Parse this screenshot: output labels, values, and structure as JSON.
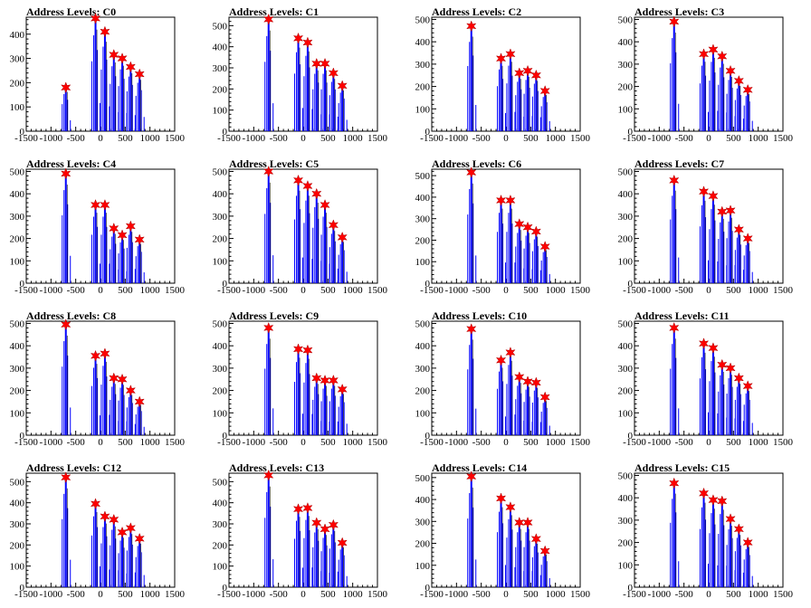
{
  "chart_data": [
    {
      "type": "bar",
      "title": "Address Levels: C0",
      "xlim": [
        -1500,
        1500
      ],
      "ylim": [
        0,
        470
      ],
      "yticks": [
        0,
        100,
        200,
        300,
        400
      ],
      "xticks": [
        -1500,
        -1000,
        -500,
        0,
        500,
        1000,
        1500
      ],
      "peaks": [
        [
          -700,
          180
        ],
        [
          -100,
          465
        ],
        [
          90,
          410
        ],
        [
          270,
          315
        ],
        [
          440,
          300
        ],
        [
          610,
          265
        ],
        [
          790,
          235
        ]
      ],
      "bar_color": "#0000ff",
      "marker_color": "#ff0000"
    },
    {
      "type": "bar",
      "title": "Address Levels: C1",
      "xlim": [
        -1500,
        1500
      ],
      "ylim": [
        0,
        540
      ],
      "yticks": [
        0,
        100,
        200,
        300,
        400,
        500
      ],
      "xticks": [
        -1500,
        -1000,
        -500,
        0,
        500,
        1000,
        1500
      ],
      "peaks": [
        [
          -700,
          530
        ],
        [
          -100,
          440
        ],
        [
          90,
          420
        ],
        [
          270,
          320
        ],
        [
          440,
          320
        ],
        [
          610,
          275
        ],
        [
          790,
          215
        ]
      ],
      "bar_color": "#0000ff",
      "marker_color": "#ff0000"
    },
    {
      "type": "bar",
      "title": "Address Levels: C2",
      "xlim": [
        -1500,
        1500
      ],
      "ylim": [
        0,
        510
      ],
      "yticks": [
        0,
        100,
        200,
        300,
        400,
        500
      ],
      "xticks": [
        -1500,
        -1000,
        -500,
        0,
        500,
        1000,
        1500
      ],
      "peaks": [
        [
          -700,
          470
        ],
        [
          -100,
          325
        ],
        [
          90,
          345
        ],
        [
          270,
          260
        ],
        [
          440,
          270
        ],
        [
          610,
          250
        ],
        [
          790,
          180
        ]
      ],
      "bar_color": "#0000ff",
      "marker_color": "#ff0000"
    },
    {
      "type": "bar",
      "title": "Address Levels: C3",
      "xlim": [
        -1500,
        1500
      ],
      "ylim": [
        0,
        510
      ],
      "yticks": [
        0,
        100,
        200,
        300,
        400,
        500
      ],
      "xticks": [
        -1500,
        -1000,
        -500,
        0,
        500,
        1000,
        1500
      ],
      "peaks": [
        [
          -700,
          490
        ],
        [
          -100,
          345
        ],
        [
          90,
          365
        ],
        [
          270,
          335
        ],
        [
          440,
          270
        ],
        [
          610,
          225
        ],
        [
          790,
          185
        ]
      ],
      "bar_color": "#0000ff",
      "marker_color": "#ff0000"
    },
    {
      "type": "bar",
      "title": "Address Levels: C4",
      "xlim": [
        -1500,
        1500
      ],
      "ylim": [
        0,
        510
      ],
      "yticks": [
        0,
        100,
        200,
        300,
        400,
        500
      ],
      "xticks": [
        -1500,
        -1000,
        -500,
        0,
        500,
        1000,
        1500
      ],
      "peaks": [
        [
          -700,
          490
        ],
        [
          -100,
          350
        ],
        [
          90,
          350
        ],
        [
          270,
          245
        ],
        [
          440,
          215
        ],
        [
          610,
          255
        ],
        [
          790,
          195
        ]
      ],
      "bar_color": "#0000ff",
      "marker_color": "#ff0000"
    },
    {
      "type": "bar",
      "title": "Address Levels: C5",
      "xlim": [
        -1500,
        1500
      ],
      "ylim": [
        0,
        510
      ],
      "yticks": [
        0,
        100,
        200,
        300,
        400,
        500
      ],
      "xticks": [
        -1500,
        -1000,
        -500,
        0,
        500,
        1000,
        1500
      ],
      "peaks": [
        [
          -700,
          500
        ],
        [
          -100,
          460
        ],
        [
          90,
          435
        ],
        [
          270,
          400
        ],
        [
          440,
          350
        ],
        [
          610,
          260
        ],
        [
          790,
          205
        ]
      ],
      "bar_color": "#0000ff",
      "marker_color": "#ff0000"
    },
    {
      "type": "bar",
      "title": "Address Levels: C6",
      "xlim": [
        -1500,
        1500
      ],
      "ylim": [
        0,
        530
      ],
      "yticks": [
        0,
        100,
        200,
        300,
        400,
        500
      ],
      "xticks": [
        -1500,
        -1000,
        -500,
        0,
        500,
        1000,
        1500
      ],
      "peaks": [
        [
          -700,
          515
        ],
        [
          -100,
          385
        ],
        [
          90,
          385
        ],
        [
          270,
          275
        ],
        [
          440,
          260
        ],
        [
          610,
          240
        ],
        [
          790,
          170
        ]
      ],
      "bar_color": "#0000ff",
      "marker_color": "#ff0000"
    },
    {
      "type": "bar",
      "title": "Address Levels: C7",
      "xlim": [
        -1500,
        1500
      ],
      "ylim": [
        0,
        510
      ],
      "yticks": [
        0,
        100,
        200,
        300,
        400,
        500
      ],
      "xticks": [
        -1500,
        -1000,
        -500,
        0,
        500,
        1000,
        1500
      ],
      "peaks": [
        [
          -700,
          460
        ],
        [
          -100,
          410
        ],
        [
          90,
          390
        ],
        [
          270,
          320
        ],
        [
          440,
          325
        ],
        [
          610,
          240
        ],
        [
          790,
          200
        ]
      ],
      "bar_color": "#0000ff",
      "marker_color": "#ff0000"
    },
    {
      "type": "bar",
      "title": "Address Levels: C8",
      "xlim": [
        -1500,
        1500
      ],
      "ylim": [
        0,
        510
      ],
      "yticks": [
        0,
        100,
        200,
        300,
        400,
        500
      ],
      "xticks": [
        -1500,
        -1000,
        -500,
        0,
        500,
        1000,
        1500
      ],
      "peaks": [
        [
          -700,
          495
        ],
        [
          -100,
          355
        ],
        [
          90,
          365
        ],
        [
          270,
          255
        ],
        [
          440,
          250
        ],
        [
          610,
          200
        ],
        [
          790,
          150
        ]
      ],
      "bar_color": "#0000ff",
      "marker_color": "#ff0000"
    },
    {
      "type": "bar",
      "title": "Address Levels: C9",
      "xlim": [
        -1500,
        1500
      ],
      "ylim": [
        0,
        510
      ],
      "yticks": [
        0,
        100,
        200,
        300,
        400,
        500
      ],
      "xticks": [
        -1500,
        -1000,
        -500,
        0,
        500,
        1000,
        1500
      ],
      "peaks": [
        [
          -700,
          480
        ],
        [
          -100,
          385
        ],
        [
          90,
          380
        ],
        [
          270,
          255
        ],
        [
          440,
          245
        ],
        [
          610,
          245
        ],
        [
          790,
          205
        ]
      ],
      "bar_color": "#0000ff",
      "marker_color": "#ff0000"
    },
    {
      "type": "bar",
      "title": "Address Levels: C10",
      "xlim": [
        -1500,
        1500
      ],
      "ylim": [
        0,
        510
      ],
      "yticks": [
        0,
        100,
        200,
        300,
        400,
        500
      ],
      "xticks": [
        -1500,
        -1000,
        -500,
        0,
        500,
        1000,
        1500
      ],
      "peaks": [
        [
          -700,
          475
        ],
        [
          -100,
          335
        ],
        [
          90,
          370
        ],
        [
          270,
          260
        ],
        [
          440,
          240
        ],
        [
          610,
          235
        ],
        [
          790,
          170
        ]
      ],
      "bar_color": "#0000ff",
      "marker_color": "#ff0000"
    },
    {
      "type": "bar",
      "title": "Address Levels: C11",
      "xlim": [
        -1500,
        1500
      ],
      "ylim": [
        0,
        510
      ],
      "yticks": [
        0,
        100,
        200,
        300,
        400,
        500
      ],
      "xticks": [
        -1500,
        -1000,
        -500,
        0,
        500,
        1000,
        1500
      ],
      "peaks": [
        [
          -700,
          480
        ],
        [
          -100,
          410
        ],
        [
          90,
          390
        ],
        [
          270,
          315
        ],
        [
          440,
          300
        ],
        [
          610,
          255
        ],
        [
          790,
          220
        ]
      ],
      "bar_color": "#0000ff",
      "marker_color": "#ff0000"
    },
    {
      "type": "bar",
      "title": "Address Levels: C12",
      "xlim": [
        -1500,
        1500
      ],
      "ylim": [
        0,
        540
      ],
      "yticks": [
        0,
        100,
        200,
        300,
        400,
        500
      ],
      "xticks": [
        -1500,
        -1000,
        -500,
        0,
        500,
        1000,
        1500
      ],
      "peaks": [
        [
          -700,
          520
        ],
        [
          -100,
          395
        ],
        [
          90,
          335
        ],
        [
          270,
          320
        ],
        [
          440,
          260
        ],
        [
          610,
          280
        ],
        [
          790,
          230
        ]
      ],
      "bar_color": "#0000ff",
      "marker_color": "#ff0000"
    },
    {
      "type": "bar",
      "title": "Address Levels: C13",
      "xlim": [
        -1500,
        1500
      ],
      "ylim": [
        0,
        540
      ],
      "yticks": [
        0,
        100,
        200,
        300,
        400,
        500
      ],
      "xticks": [
        -1500,
        -1000,
        -500,
        0,
        500,
        1000,
        1500
      ],
      "peaks": [
        [
          -700,
          530
        ],
        [
          -100,
          370
        ],
        [
          90,
          375
        ],
        [
          270,
          305
        ],
        [
          440,
          275
        ],
        [
          610,
          295
        ],
        [
          790,
          210
        ]
      ],
      "bar_color": "#0000ff",
      "marker_color": "#ff0000"
    },
    {
      "type": "bar",
      "title": "Address Levels: C14",
      "xlim": [
        -1500,
        1500
      ],
      "ylim": [
        0,
        520
      ],
      "yticks": [
        0,
        100,
        200,
        300,
        400,
        500
      ],
      "xticks": [
        -1500,
        -1000,
        -500,
        0,
        500,
        1000,
        1500
      ],
      "peaks": [
        [
          -700,
          505
        ],
        [
          -100,
          405
        ],
        [
          90,
          365
        ],
        [
          270,
          295
        ],
        [
          440,
          295
        ],
        [
          610,
          220
        ],
        [
          790,
          165
        ]
      ],
      "bar_color": "#0000ff",
      "marker_color": "#ff0000"
    },
    {
      "type": "bar",
      "title": "Address Levels: C15",
      "xlim": [
        -1500,
        1500
      ],
      "ylim": [
        0,
        510
      ],
      "yticks": [
        0,
        100,
        200,
        300,
        400,
        500
      ],
      "xticks": [
        -1500,
        -1000,
        -500,
        0,
        500,
        1000,
        1500
      ],
      "peaks": [
        [
          -700,
          465
        ],
        [
          -100,
          420
        ],
        [
          90,
          390
        ],
        [
          270,
          385
        ],
        [
          440,
          305
        ],
        [
          610,
          260
        ],
        [
          790,
          200
        ]
      ],
      "bar_color": "#0000ff",
      "marker_color": "#ff0000"
    }
  ]
}
